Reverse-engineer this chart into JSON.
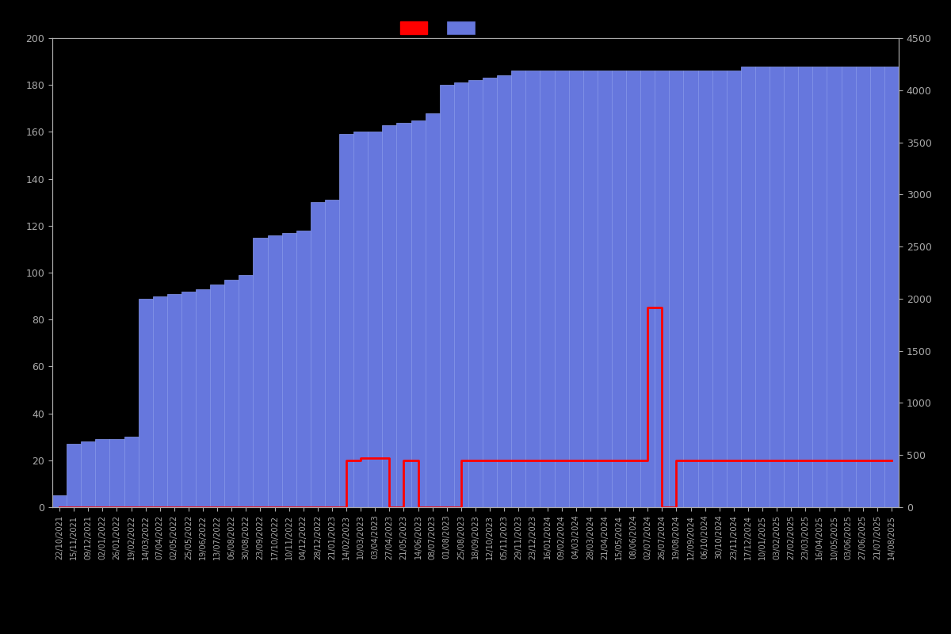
{
  "background_color": "#000000",
  "text_color": "#aaaaaa",
  "bar_color": "#6677dd",
  "bar_edgecolor": "#8899ee",
  "line_color": "#ff0000",
  "ylim_left": [
    0,
    200
  ],
  "ylim_right": [
    0,
    4500
  ],
  "dates": [
    "22/10/2021",
    "15/11/2021",
    "09/12/2021",
    "02/01/2022",
    "26/01/2022",
    "19/02/2022",
    "14/03/2022",
    "07/04/2022",
    "02/05/2022",
    "25/05/2022",
    "19/06/2022",
    "13/07/2022",
    "06/08/2022",
    "30/08/2022",
    "23/09/2022",
    "17/10/2022",
    "10/11/2022",
    "04/12/2022",
    "28/12/2022",
    "21/01/2023",
    "14/02/2023",
    "10/03/2023",
    "03/04/2023",
    "27/04/2023",
    "21/05/2023",
    "14/06/2023",
    "08/07/2023",
    "01/08/2023",
    "25/08/2023",
    "18/09/2023",
    "12/10/2023",
    "05/11/2023",
    "29/11/2023",
    "23/12/2023",
    "16/01/2024",
    "09/02/2024",
    "04/03/2024",
    "28/03/2024",
    "21/04/2024",
    "15/05/2024",
    "08/06/2024",
    "02/07/2024",
    "26/07/2024",
    "19/08/2024",
    "12/09/2024",
    "06/10/2024",
    "30/10/2024",
    "23/11/2024",
    "17/12/2024",
    "10/01/2025",
    "03/02/2025",
    "27/02/2025",
    "23/03/2025",
    "16/04/2025",
    "10/05/2025",
    "03/06/2025",
    "27/06/2025",
    "21/07/2025",
    "14/08/2025"
  ],
  "bar_values": [
    5,
    27,
    28,
    29,
    29,
    30,
    89,
    90,
    91,
    92,
    93,
    95,
    97,
    99,
    115,
    116,
    117,
    118,
    130,
    131,
    159,
    160,
    160,
    163,
    164,
    165,
    168,
    180,
    181,
    182,
    183,
    184,
    186,
    186,
    186,
    186,
    186,
    186,
    186,
    186,
    186,
    186,
    186,
    186,
    186,
    186,
    186,
    186,
    188,
    188,
    188,
    188,
    188,
    188,
    188,
    188,
    188,
    188,
    188
  ],
  "line_values": [
    0,
    0,
    0,
    0,
    0,
    0,
    0,
    0,
    0,
    0,
    0,
    0,
    0,
    0,
    0,
    0,
    0,
    0,
    0,
    0,
    20,
    21,
    21,
    0,
    20,
    0,
    0,
    0,
    20,
    20,
    20,
    20,
    20,
    20,
    20,
    20,
    20,
    20,
    20,
    20,
    20,
    85,
    0,
    20,
    20,
    20,
    20,
    20,
    20,
    20,
    20,
    20,
    20,
    20,
    20,
    20,
    20,
    20,
    20
  ],
  "left_ticks": [
    0,
    20,
    40,
    60,
    80,
    100,
    120,
    140,
    160,
    180,
    200
  ],
  "right_ticks": [
    0,
    500,
    1000,
    1500,
    2000,
    2500,
    3000,
    3500,
    4000,
    4500
  ]
}
